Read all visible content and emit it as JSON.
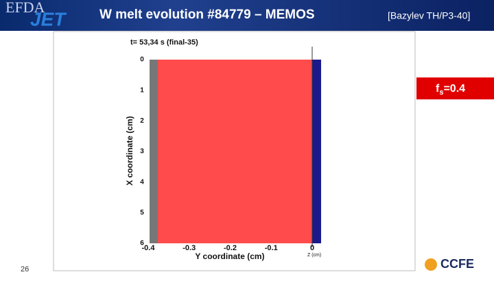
{
  "header": {
    "logo_top": "EFDA",
    "logo": "JET",
    "title": "W melt evolution #84779 – MEMOS",
    "reference": "[Bazylev TH/P3-40]"
  },
  "plot": {
    "time_label": "t= 53,34 s (final-35)",
    "x_axis_label": "Y coordinate (cm)",
    "y_axis_label": "X coordinate (cm)",
    "z_label": "Z (cm)",
    "x_ticks": [
      "-0.4",
      "-0.3",
      "-0.2",
      "-0.1",
      "0"
    ],
    "y_ticks": [
      "0",
      "1",
      "2",
      "3",
      "4",
      "5",
      "6"
    ]
  },
  "callout": {
    "base": "f",
    "subscript": "s",
    "rest": "=0.4"
  },
  "footer": {
    "page": "26",
    "logo": "CCFE"
  }
}
